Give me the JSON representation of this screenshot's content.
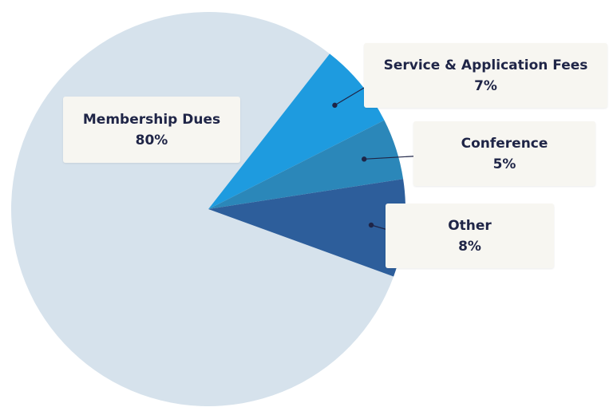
{
  "chart_data": {
    "type": "pie",
    "title": "",
    "slices": [
      {
        "label": "Membership Dues",
        "value": 80,
        "display": "80%",
        "color": "#d6e2ec"
      },
      {
        "label": "Service & Application Fees",
        "value": 7,
        "display": "7%",
        "color": "#1e9bdf"
      },
      {
        "label": "Conference",
        "value": 5,
        "display": "5%",
        "color": "#2b87b9"
      },
      {
        "label": "Other",
        "value": 8,
        "display": "8%",
        "color": "#2d5e9b"
      }
    ],
    "legend": "none",
    "labels": "callout-boxes"
  }
}
